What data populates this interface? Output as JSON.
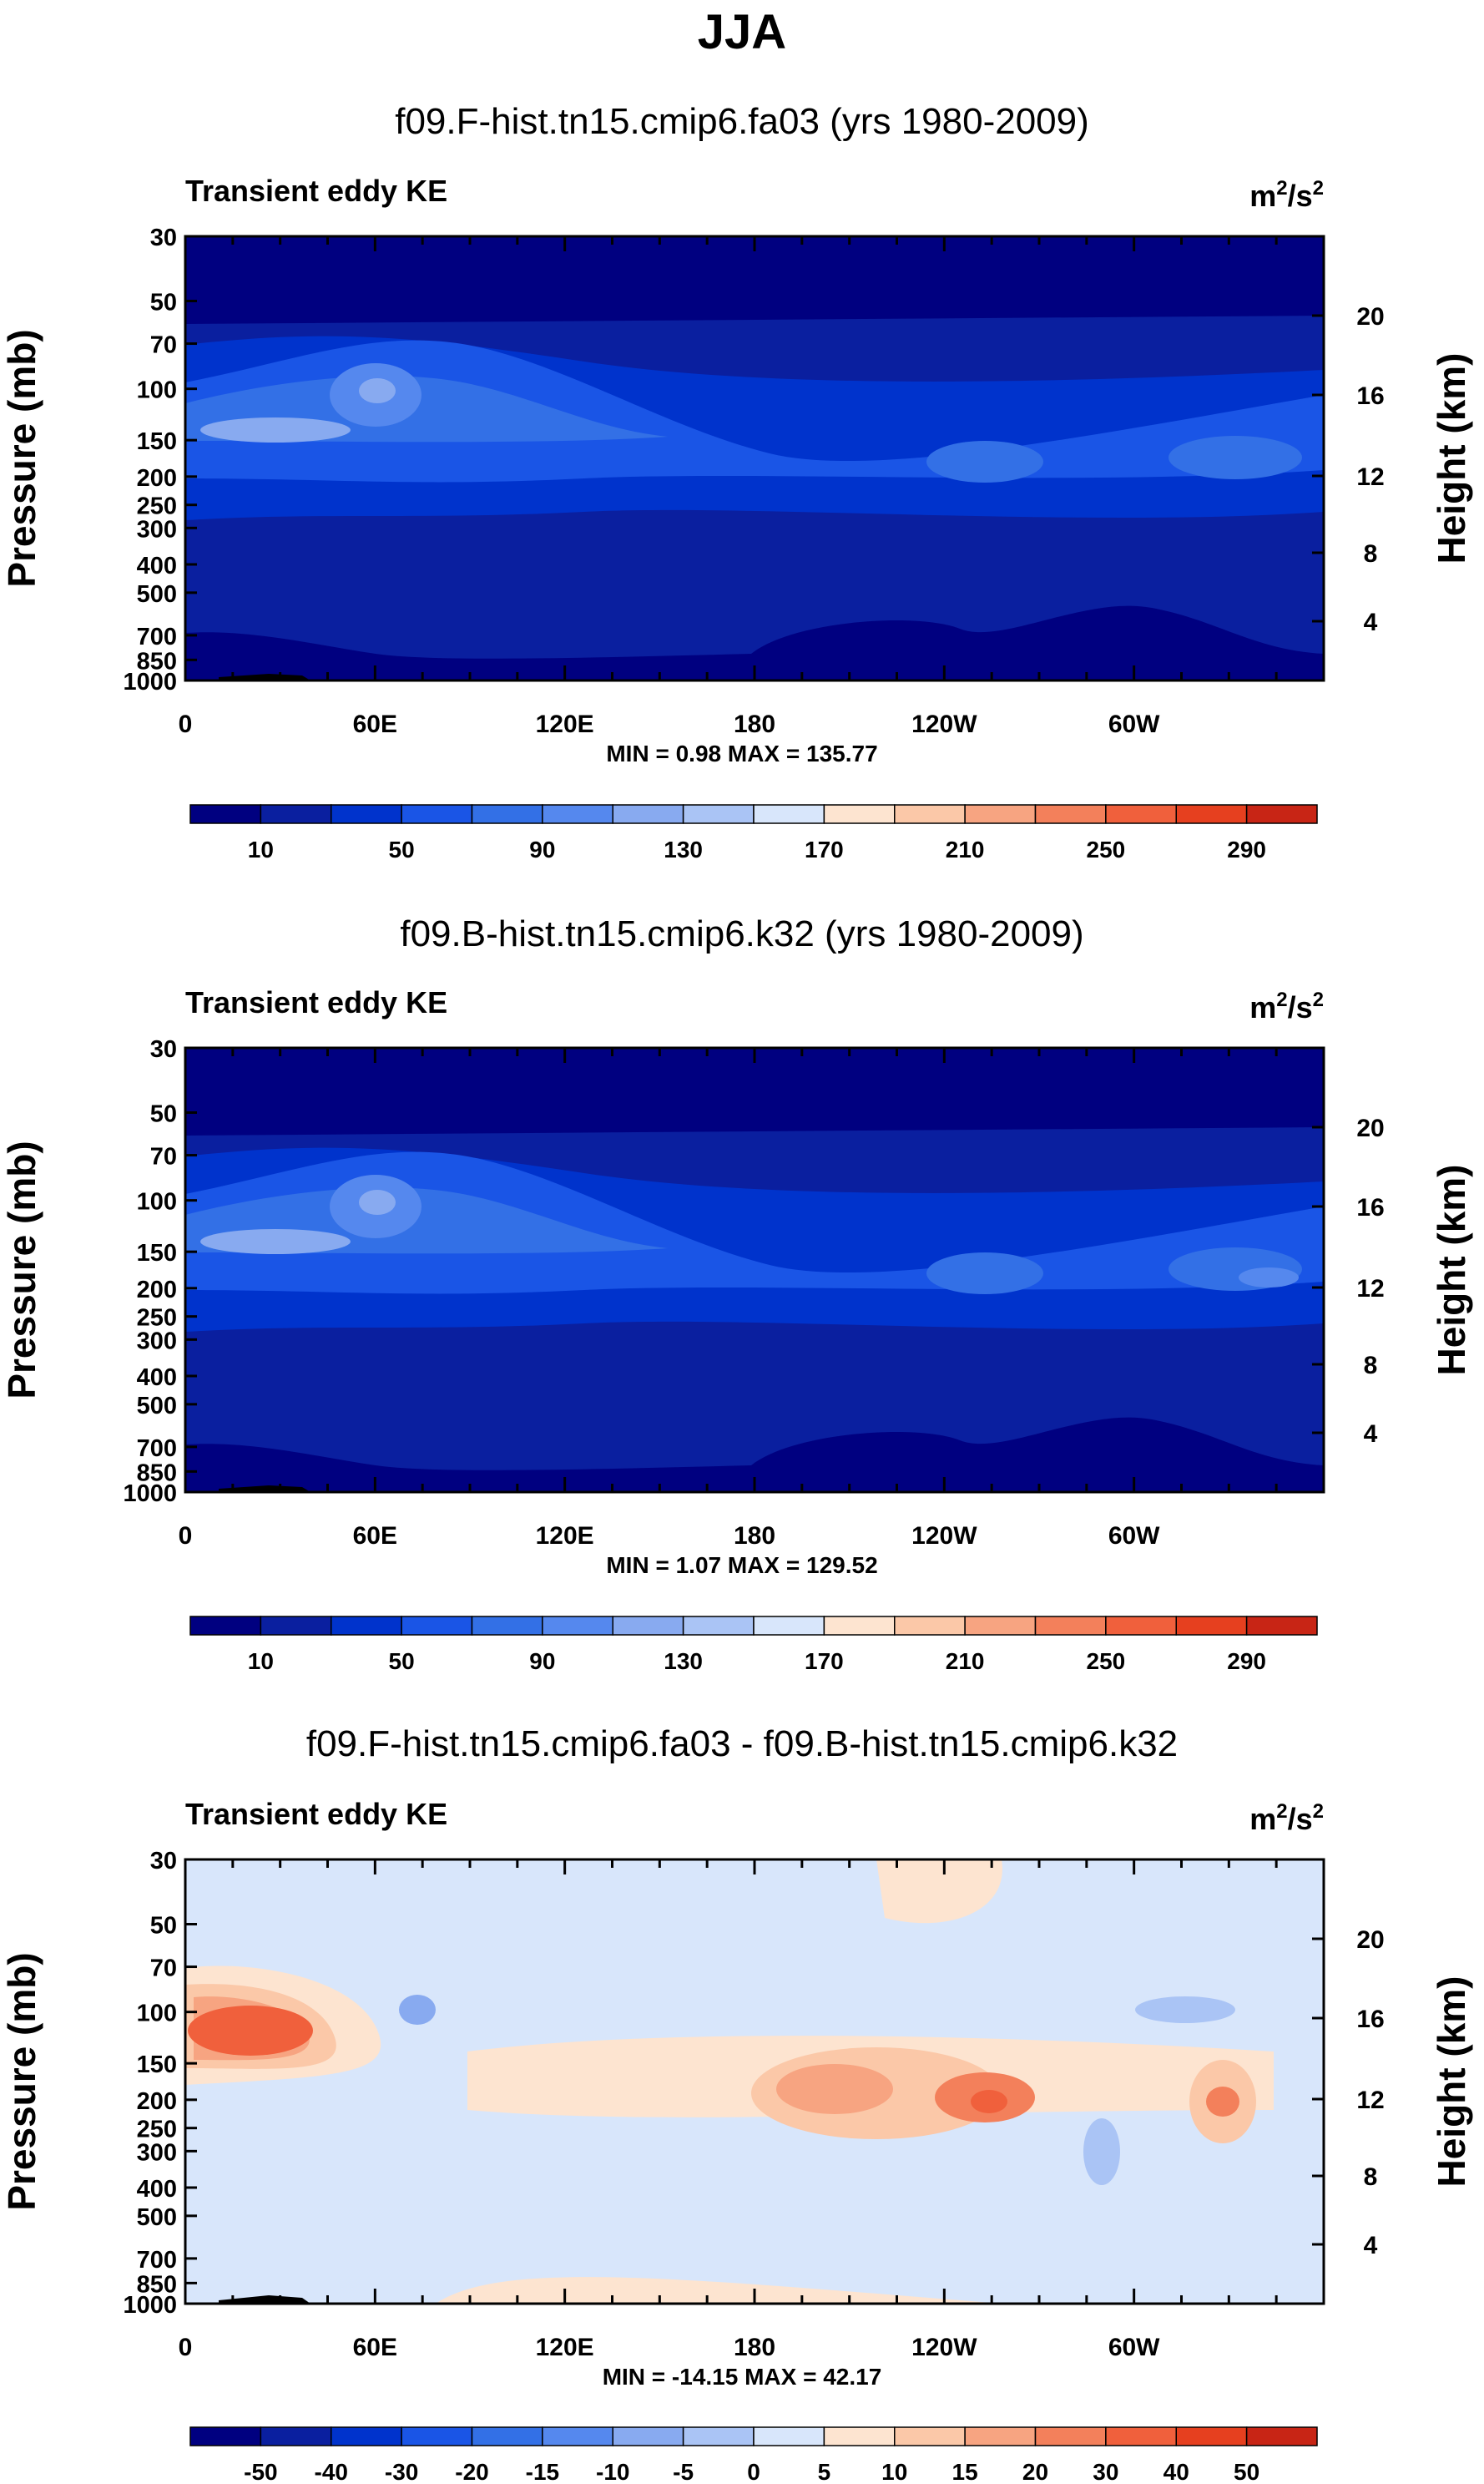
{
  "season": "JJA",
  "colors": {
    "seq": [
      "#000080",
      "#0a1f9f",
      "#0033cc",
      "#1a55e6",
      "#3370e6",
      "#5588ee",
      "#88aaf0",
      "#aac4f5",
      "#d8e6fb",
      "#fde4d0",
      "#fbc8a8",
      "#f7a481",
      "#f3805b",
      "#f0603c",
      "#e6401f",
      "#c82515",
      "#8b0000"
    ],
    "diff": [
      "#000080",
      "#0a1f9f",
      "#0033cc",
      "#1a55e6",
      "#3370e6",
      "#5588ee",
      "#88aaf0",
      "#aac4f5",
      "#d8e6fb",
      "#fde4d0",
      "#fbc8a8",
      "#f7a481",
      "#f3805b",
      "#f0603c",
      "#e6401f",
      "#c82515",
      "#8b0000"
    ],
    "topo": "#000000"
  },
  "chart_data": [
    {
      "type": "heatmap",
      "title": "f09.F-hist.tn15.cmip6.fa03 (yrs 1980-2009)",
      "left_label": "Transient eddy KE",
      "units": "m2/s2",
      "units_base": "m",
      "units_exp": "2",
      "units_tail": "/s",
      "units_exp2": "2",
      "ylabel": "Pressure (mb)",
      "ylabel_right": "Height (km)",
      "yticks": [
        "30",
        "50",
        "70",
        "100",
        "150",
        "200",
        "250",
        "300",
        "400",
        "500",
        "700",
        "850",
        "1000"
      ],
      "yticks_right": [
        "20",
        "16",
        "12",
        "8",
        "4"
      ],
      "xticks": [
        "0",
        "60E",
        "120E",
        "180",
        "120W",
        "60W"
      ],
      "stats": "MIN =   0.98  MAX = 135.77",
      "min": 0.98,
      "max": 135.77,
      "colorbar_labels": [
        "10",
        "50",
        "90",
        "130",
        "170",
        "210",
        "250",
        "290"
      ],
      "colorbar_levels": [
        10,
        30,
        50,
        70,
        90,
        110,
        130,
        150,
        170,
        190,
        210,
        230,
        250,
        270,
        290
      ]
    },
    {
      "type": "heatmap",
      "title": "f09.B-hist.tn15.cmip6.k32 (yrs 1980-2009)",
      "left_label": "Transient eddy KE",
      "units": "m2/s2",
      "units_base": "m",
      "units_exp": "2",
      "units_tail": "/s",
      "units_exp2": "2",
      "ylabel": "Pressure (mb)",
      "ylabel_right": "Height (km)",
      "yticks": [
        "30",
        "50",
        "70",
        "100",
        "150",
        "200",
        "250",
        "300",
        "400",
        "500",
        "700",
        "850",
        "1000"
      ],
      "yticks_right": [
        "20",
        "16",
        "12",
        "8",
        "4"
      ],
      "xticks": [
        "0",
        "60E",
        "120E",
        "180",
        "120W",
        "60W"
      ],
      "stats": "MIN =   1.07  MAX = 129.52",
      "min": 1.07,
      "max": 129.52,
      "colorbar_labels": [
        "10",
        "50",
        "90",
        "130",
        "170",
        "210",
        "250",
        "290"
      ],
      "colorbar_levels": [
        10,
        30,
        50,
        70,
        90,
        110,
        130,
        150,
        170,
        190,
        210,
        230,
        250,
        270,
        290
      ]
    },
    {
      "type": "heatmap",
      "title": "f09.F-hist.tn15.cmip6.fa03 - f09.B-hist.tn15.cmip6.k32",
      "left_label": "Transient eddy KE",
      "units": "m2/s2",
      "units_base": "m",
      "units_exp": "2",
      "units_tail": "/s",
      "units_exp2": "2",
      "ylabel": "Pressure (mb)",
      "ylabel_right": "Height (km)",
      "yticks": [
        "30",
        "50",
        "70",
        "100",
        "150",
        "200",
        "250",
        "300",
        "400",
        "500",
        "700",
        "850",
        "1000"
      ],
      "yticks_right": [
        "20",
        "16",
        "12",
        "8",
        "4"
      ],
      "xticks": [
        "0",
        "60E",
        "120E",
        "180",
        "120W",
        "60W"
      ],
      "stats": "MIN = -14.15  MAX = 42.17",
      "min": -14.15,
      "max": 42.17,
      "colorbar_labels": [
        "-50",
        "-40",
        "-30",
        "-20",
        "-15",
        "-10",
        "-5",
        "0",
        "5",
        "10",
        "15",
        "20",
        "30",
        "40",
        "50"
      ],
      "colorbar_levels": [
        -50,
        -40,
        -30,
        -20,
        -15,
        -10,
        -5,
        0,
        5,
        10,
        15,
        20,
        30,
        40,
        50
      ]
    }
  ]
}
